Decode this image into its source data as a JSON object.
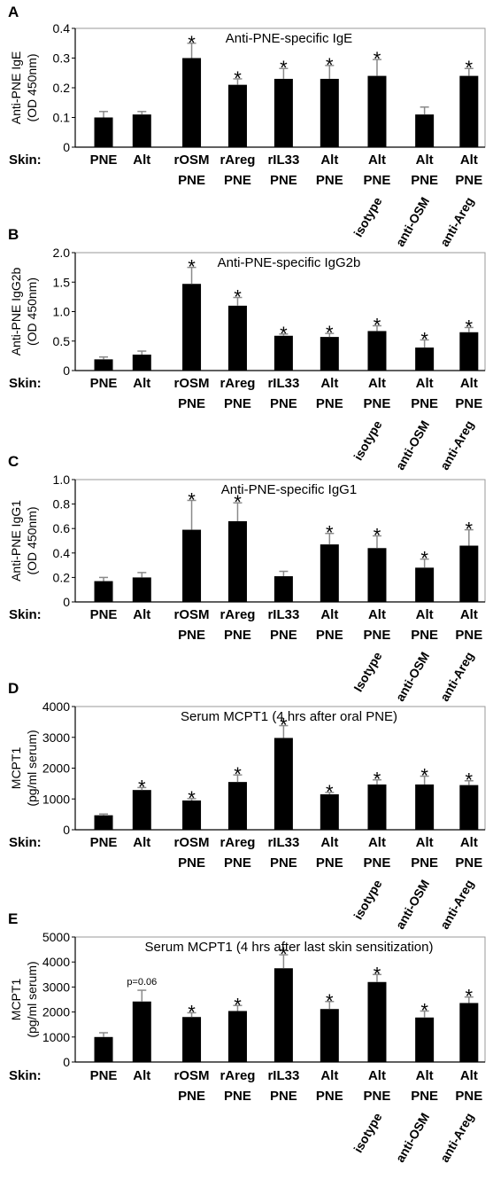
{
  "chart_data": [
    {
      "type": "bar",
      "panel_label": "A",
      "title": "Anti-PNE-specific IgE",
      "ylabel": [
        "Anti-PNE IgE",
        "(OD 450nm)"
      ],
      "ylim": [
        0,
        0.4
      ],
      "yticks": [
        "0",
        "0.1",
        "0.2",
        "0.3",
        "0.4"
      ],
      "row_label": "Skin:",
      "categories": [
        {
          "line1": "PNE",
          "line2": "",
          "rotated": ""
        },
        {
          "line1": "Alt",
          "line2": "",
          "rotated": ""
        },
        {
          "line1": "rOSM",
          "line2": "PNE",
          "rotated": ""
        },
        {
          "line1": "rAreg",
          "line2": "PNE",
          "rotated": ""
        },
        {
          "line1": "rIL33",
          "line2": "PNE",
          "rotated": ""
        },
        {
          "line1": "Alt",
          "line2": "PNE",
          "rotated": ""
        },
        {
          "line1": "Alt",
          "line2": "PNE",
          "rotated": "isotype"
        },
        {
          "line1": "Alt",
          "line2": "PNE",
          "rotated": "anti-OSM"
        },
        {
          "line1": "Alt",
          "line2": "PNE",
          "rotated": "anti-Areg"
        }
      ],
      "values": [
        0.1,
        0.11,
        0.3,
        0.21,
        0.23,
        0.23,
        0.24,
        0.11,
        0.24
      ],
      "errors": [
        0.02,
        0.01,
        0.05,
        0.02,
        0.035,
        0.045,
        0.055,
        0.025,
        0.025
      ],
      "significant": [
        "",
        "",
        "*",
        "*",
        "*",
        "*",
        "*",
        "",
        "*"
      ],
      "annotations": [
        "",
        "",
        "",
        "",
        "",
        "",
        "",
        "",
        ""
      ]
    },
    {
      "type": "bar",
      "panel_label": "B",
      "title": "Anti-PNE-specific IgG2b",
      "ylabel": [
        "Anti-PNE IgG2b",
        "(OD 450nm)"
      ],
      "ylim": [
        0,
        2.0
      ],
      "yticks": [
        "0",
        "0.5",
        "1.0",
        "1.5",
        "2.0"
      ],
      "row_label": "Skin:",
      "categories": [
        {
          "line1": "PNE",
          "line2": "",
          "rotated": ""
        },
        {
          "line1": "Alt",
          "line2": "",
          "rotated": ""
        },
        {
          "line1": "rOSM",
          "line2": "PNE",
          "rotated": ""
        },
        {
          "line1": "rAreg",
          "line2": "PNE",
          "rotated": ""
        },
        {
          "line1": "rIL33",
          "line2": "PNE",
          "rotated": ""
        },
        {
          "line1": "Alt",
          "line2": "PNE",
          "rotated": ""
        },
        {
          "line1": "Alt",
          "line2": "PNE",
          "rotated": "isotype"
        },
        {
          "line1": "Alt",
          "line2": "PNE",
          "rotated": "anti-OSM"
        },
        {
          "line1": "Alt",
          "line2": "PNE",
          "rotated": "anti-Areg"
        }
      ],
      "values": [
        0.19,
        0.27,
        1.47,
        1.1,
        0.59,
        0.57,
        0.67,
        0.39,
        0.65
      ],
      "errors": [
        0.04,
        0.06,
        0.28,
        0.14,
        0.03,
        0.06,
        0.09,
        0.13,
        0.08
      ],
      "significant": [
        "",
        "",
        "*",
        "*",
        "*",
        "*",
        "*",
        "*",
        "*"
      ],
      "annotations": [
        "",
        "",
        "",
        "",
        "",
        "",
        "",
        "",
        ""
      ]
    },
    {
      "type": "bar",
      "panel_label": "C",
      "title": "Anti-PNE-specific IgG1",
      "ylabel": [
        "Anti-PNE IgG1",
        "(OD 450nm)"
      ],
      "ylim": [
        0,
        1.0
      ],
      "yticks": [
        "0",
        "0.2",
        "0.4",
        "0.6",
        "0.8",
        "1.0"
      ],
      "row_label": "Skin:",
      "categories": [
        {
          "line1": "PNE",
          "line2": "",
          "rotated": ""
        },
        {
          "line1": "Alt",
          "line2": "",
          "rotated": ""
        },
        {
          "line1": "rOSM",
          "line2": "PNE",
          "rotated": ""
        },
        {
          "line1": "rAreg",
          "line2": "PNE",
          "rotated": ""
        },
        {
          "line1": "rIL33",
          "line2": "PNE",
          "rotated": ""
        },
        {
          "line1": "Alt",
          "line2": "PNE",
          "rotated": ""
        },
        {
          "line1": "Alt",
          "line2": "PNE",
          "rotated": "Isotype"
        },
        {
          "line1": "Alt",
          "line2": "PNE",
          "rotated": "anti-OSM"
        },
        {
          "line1": "Alt",
          "line2": "PNE",
          "rotated": "anti-Areg"
        }
      ],
      "values": [
        0.17,
        0.2,
        0.59,
        0.66,
        0.21,
        0.47,
        0.44,
        0.28,
        0.46
      ],
      "errors": [
        0.03,
        0.04,
        0.24,
        0.15,
        0.04,
        0.09,
        0.1,
        0.07,
        0.13
      ],
      "significant": [
        "",
        "",
        "*",
        "*",
        "",
        "*",
        "*",
        "*",
        "*"
      ],
      "annotations": [
        "",
        "",
        "",
        "",
        "",
        "",
        "",
        "",
        ""
      ]
    },
    {
      "type": "bar",
      "panel_label": "D",
      "title": "Serum MCPT1 (4 hrs after oral PNE)",
      "ylabel": [
        "MCPT1",
        "(pg/ml serum)"
      ],
      "ylim": [
        0,
        4000
      ],
      "yticks": [
        "0",
        "1000",
        "2000",
        "3000",
        "4000"
      ],
      "row_label": "Skin:",
      "categories": [
        {
          "line1": "PNE",
          "line2": "",
          "rotated": ""
        },
        {
          "line1": "Alt",
          "line2": "",
          "rotated": ""
        },
        {
          "line1": "rOSM",
          "line2": "PNE",
          "rotated": ""
        },
        {
          "line1": "rAreg",
          "line2": "PNE",
          "rotated": ""
        },
        {
          "line1": "rIL33",
          "line2": "PNE",
          "rotated": ""
        },
        {
          "line1": "Alt",
          "line2": "PNE",
          "rotated": ""
        },
        {
          "line1": "Alt",
          "line2": "PNE",
          "rotated": "isotype"
        },
        {
          "line1": "Alt",
          "line2": "PNE",
          "rotated": "anti-OSM"
        },
        {
          "line1": "Alt",
          "line2": "PNE",
          "rotated": "anti-Areg"
        }
      ],
      "values": [
        470,
        1290,
        950,
        1550,
        2980,
        1150,
        1470,
        1470,
        1450
      ],
      "errors": [
        40,
        80,
        60,
        230,
        400,
        60,
        150,
        270,
        140
      ],
      "significant": [
        "",
        "*",
        "*",
        "*",
        "*",
        "*",
        "*",
        "*",
        "*"
      ],
      "annotations": [
        "",
        "",
        "",
        "",
        "",
        "",
        "",
        "",
        ""
      ]
    },
    {
      "type": "bar",
      "panel_label": "E",
      "title": "Serum MCPT1 (4 hrs after last skin sensitization)",
      "ylabel": [
        "MCPT1",
        "(pg/ml serum)"
      ],
      "ylim": [
        0,
        5000
      ],
      "yticks": [
        "0",
        "1000",
        "2000",
        "3000",
        "4000",
        "5000"
      ],
      "row_label": "Skin:",
      "categories": [
        {
          "line1": "PNE",
          "line2": "",
          "rotated": ""
        },
        {
          "line1": "Alt",
          "line2": "",
          "rotated": ""
        },
        {
          "line1": "rOSM",
          "line2": "PNE",
          "rotated": ""
        },
        {
          "line1": "rAreg",
          "line2": "PNE",
          "rotated": ""
        },
        {
          "line1": "rIL33",
          "line2": "PNE",
          "rotated": ""
        },
        {
          "line1": "Alt",
          "line2": "PNE",
          "rotated": ""
        },
        {
          "line1": "Alt",
          "line2": "PNE",
          "rotated": "isotype"
        },
        {
          "line1": "Alt",
          "line2": "PNE",
          "rotated": "anti-OSM"
        },
        {
          "line1": "Alt",
          "line2": "PNE",
          "rotated": "anti-Areg"
        }
      ],
      "values": [
        1000,
        2420,
        1800,
        2040,
        3750,
        2120,
        3200,
        1780,
        2360
      ],
      "errors": [
        170,
        450,
        170,
        220,
        540,
        300,
        300,
        260,
        240
      ],
      "significant": [
        "",
        "",
        "*",
        "*",
        "*",
        "*",
        "*",
        "*",
        "*"
      ],
      "annotations": [
        "",
        "p=0.06",
        "",
        "",
        "",
        "",
        "",
        "",
        ""
      ]
    }
  ]
}
